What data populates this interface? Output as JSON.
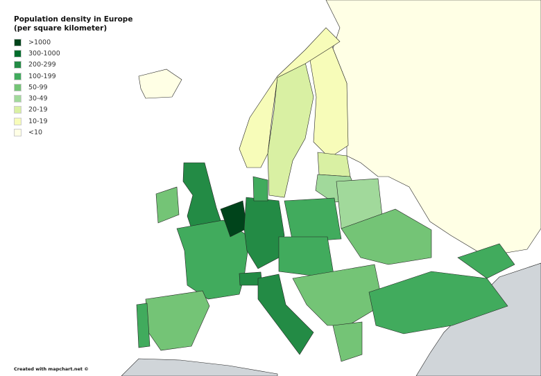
{
  "legend": {
    "title_line1": "Population density in Europe",
    "title_line2": "(per square kilometer)",
    "items": [
      {
        "label": ">1000",
        "color": "#00441b"
      },
      {
        "label": "300-1000",
        "color": "#006d2c"
      },
      {
        "label": "200-299",
        "color": "#238b45"
      },
      {
        "label": "100-199",
        "color": "#41ab5d"
      },
      {
        "label": "50-99",
        "color": "#74c476"
      },
      {
        "label": "30-49",
        "color": "#a1d99b"
      },
      {
        "label": "20-19",
        "color": "#d9f0a3"
      },
      {
        "label": "10-19",
        "color": "#f7fcb9"
      },
      {
        "label": "<10",
        "color": "#ffffe5"
      }
    ]
  },
  "map": {
    "no_data_color": "#d0d5d9",
    "border_color": "#222222"
  },
  "credit": "Created with mapchart.net ©"
}
